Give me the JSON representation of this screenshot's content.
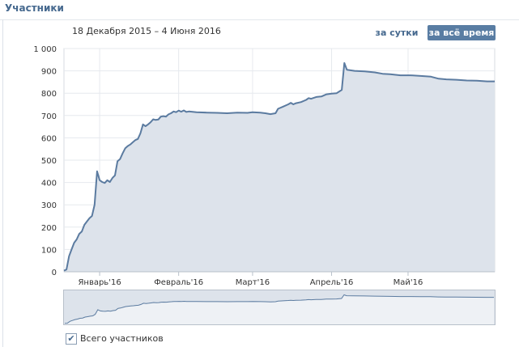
{
  "header": {
    "title": "Участники"
  },
  "date_range": "18 Декабря 2015 – 4 Июня 2016",
  "buttons": {
    "day": "за сутки",
    "all": "за всё время"
  },
  "legend": {
    "label": "Всего участников",
    "checked": true
  },
  "colors": {
    "line": "#5b7ba0",
    "fill": "#dde3eb",
    "grid": "#e6e9ee",
    "accent": "#597da3",
    "title": "#45688e"
  },
  "chart_data": {
    "type": "area",
    "title": "",
    "xlabel": "",
    "ylabel": "",
    "x_start": "2015-12-18",
    "x_end": "2016-06-04",
    "x_ticks": [
      "Январь'16",
      "Февраль'16",
      "Март'16",
      "Апрель'16",
      "Май'16"
    ],
    "x_tick_dates": [
      "2016-01-01",
      "2016-02-01",
      "2016-03-01",
      "2016-04-01",
      "2016-05-01"
    ],
    "y_ticks": [
      "0",
      "100",
      "200",
      "300",
      "400",
      "500",
      "600",
      "700",
      "800",
      "900",
      "1 000"
    ],
    "ylim": [
      0,
      1000
    ],
    "grid": true,
    "series": [
      {
        "points": [
          [
            "2015-12-18",
            5
          ],
          [
            "2015-12-19",
            10
          ],
          [
            "2015-12-20",
            70
          ],
          [
            "2015-12-21",
            100
          ],
          [
            "2015-12-22",
            130
          ],
          [
            "2015-12-23",
            145
          ],
          [
            "2015-12-24",
            170
          ],
          [
            "2015-12-25",
            180
          ],
          [
            "2015-12-26",
            210
          ],
          [
            "2015-12-27",
            225
          ],
          [
            "2015-12-28",
            240
          ],
          [
            "2015-12-29",
            250
          ],
          [
            "2015-12-30",
            300
          ],
          [
            "2015-12-31",
            450
          ],
          [
            "2016-01-01",
            410
          ],
          [
            "2016-01-02",
            402
          ],
          [
            "2016-01-03",
            398
          ],
          [
            "2016-01-04",
            410
          ],
          [
            "2016-01-05",
            402
          ],
          [
            "2016-01-06",
            420
          ],
          [
            "2016-01-07",
            432
          ],
          [
            "2016-01-08",
            495
          ],
          [
            "2016-01-09",
            505
          ],
          [
            "2016-01-10",
            530
          ],
          [
            "2016-01-11",
            553
          ],
          [
            "2016-01-12",
            563
          ],
          [
            "2016-01-13",
            570
          ],
          [
            "2016-01-14",
            580
          ],
          [
            "2016-01-15",
            590
          ],
          [
            "2016-01-16",
            595
          ],
          [
            "2016-01-17",
            620
          ],
          [
            "2016-01-18",
            660
          ],
          [
            "2016-01-19",
            652
          ],
          [
            "2016-01-20",
            660
          ],
          [
            "2016-01-21",
            670
          ],
          [
            "2016-01-22",
            683
          ],
          [
            "2016-01-23",
            680
          ],
          [
            "2016-01-24",
            682
          ],
          [
            "2016-01-25",
            695
          ],
          [
            "2016-01-26",
            697
          ],
          [
            "2016-01-27",
            695
          ],
          [
            "2016-01-28",
            705
          ],
          [
            "2016-01-29",
            710
          ],
          [
            "2016-01-30",
            718
          ],
          [
            "2016-01-31",
            715
          ],
          [
            "2016-02-01",
            722
          ],
          [
            "2016-02-02",
            717
          ],
          [
            "2016-02-03",
            723
          ],
          [
            "2016-02-04",
            716
          ],
          [
            "2016-02-05",
            718
          ],
          [
            "2016-02-08",
            715
          ],
          [
            "2016-02-12",
            713
          ],
          [
            "2016-02-16",
            712
          ],
          [
            "2016-02-20",
            710
          ],
          [
            "2016-02-24",
            713
          ],
          [
            "2016-02-28",
            712
          ],
          [
            "2016-03-01",
            715
          ],
          [
            "2016-03-04",
            713
          ],
          [
            "2016-03-06",
            710
          ],
          [
            "2016-03-08",
            706
          ],
          [
            "2016-03-10",
            710
          ],
          [
            "2016-03-11",
            730
          ],
          [
            "2016-03-13",
            740
          ],
          [
            "2016-03-15",
            750
          ],
          [
            "2016-03-16",
            757
          ],
          [
            "2016-03-17",
            750
          ],
          [
            "2016-03-18",
            755
          ],
          [
            "2016-03-20",
            760
          ],
          [
            "2016-03-22",
            770
          ],
          [
            "2016-03-23",
            778
          ],
          [
            "2016-03-24",
            775
          ],
          [
            "2016-03-26",
            783
          ],
          [
            "2016-03-28",
            785
          ],
          [
            "2016-03-30",
            795
          ],
          [
            "2016-04-01",
            798
          ],
          [
            "2016-04-03",
            800
          ],
          [
            "2016-04-05",
            815
          ],
          [
            "2016-04-06",
            935
          ],
          [
            "2016-04-07",
            905
          ],
          [
            "2016-04-10",
            900
          ],
          [
            "2016-04-14",
            898
          ],
          [
            "2016-04-18",
            893
          ],
          [
            "2016-04-21",
            887
          ],
          [
            "2016-04-24",
            885
          ],
          [
            "2016-04-28",
            880
          ],
          [
            "2016-05-02",
            880
          ],
          [
            "2016-05-06",
            877
          ],
          [
            "2016-05-10",
            874
          ],
          [
            "2016-05-13",
            865
          ],
          [
            "2016-05-16",
            862
          ],
          [
            "2016-05-20",
            860
          ],
          [
            "2016-05-24",
            857
          ],
          [
            "2016-05-28",
            856
          ],
          [
            "2016-06-01",
            853
          ],
          [
            "2016-06-04",
            853
          ]
        ]
      }
    ]
  }
}
